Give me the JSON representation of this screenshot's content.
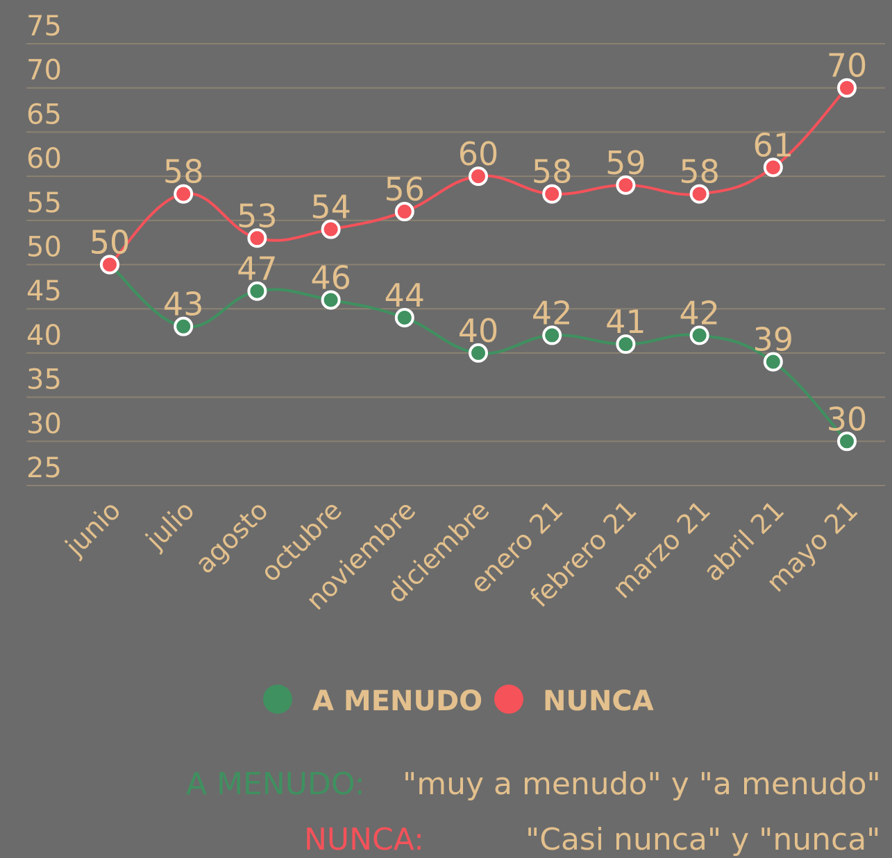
{
  "chart_data": {
    "type": "line",
    "categories": [
      "junio",
      "julio",
      "agosto",
      "octubre",
      "noviembre",
      "diciembre",
      "enero 21",
      "febrero 21",
      "marzo 21",
      "abril 21",
      "mayo 21"
    ],
    "series": [
      {
        "name": "A MENUDO",
        "color": "#3f9160",
        "values": [
          50,
          43,
          47,
          46,
          44,
          40,
          42,
          41,
          42,
          39,
          30
        ]
      },
      {
        "name": "NUNCA",
        "color": "#f5525a",
        "values": [
          50,
          58,
          53,
          54,
          56,
          60,
          58,
          59,
          58,
          61,
          70
        ]
      }
    ],
    "ylim": [
      25,
      75
    ],
    "yticks": [
      25,
      30,
      35,
      40,
      45,
      50,
      55,
      60,
      65,
      70,
      75
    ],
    "grid": true,
    "legend": "bottom",
    "notes": [
      {
        "label": "A MENUDO:",
        "text": "\"muy a menudo\" y \"a menudo\""
      },
      {
        "label": "NUNCA:",
        "text": "\"Casi nunca\" y \"nunca\""
      }
    ]
  }
}
